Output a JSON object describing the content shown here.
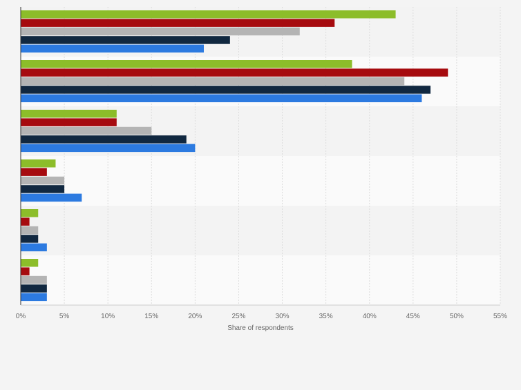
{
  "chart_data": {
    "type": "bar",
    "orientation": "horizontal",
    "xlabel": "Share of respondents",
    "ylabel": "",
    "xlim": [
      0,
      55
    ],
    "x_ticks": [
      {
        "value": 0,
        "label": "0%"
      },
      {
        "value": 5,
        "label": "5%"
      },
      {
        "value": 10,
        "label": "10%"
      },
      {
        "value": 15,
        "label": "15%"
      },
      {
        "value": 20,
        "label": "20%"
      },
      {
        "value": 25,
        "label": "25%"
      },
      {
        "value": 30,
        "label": "30%"
      },
      {
        "value": 35,
        "label": "35%"
      },
      {
        "value": 40,
        "label": "40%"
      },
      {
        "value": 45,
        "label": "45%"
      },
      {
        "value": 50,
        "label": "50%"
      },
      {
        "value": 55,
        "label": "55%"
      }
    ],
    "grid": true,
    "categories": [
      "",
      "",
      "",
      "",
      "",
      ""
    ],
    "series": [
      {
        "color": "#8cbd2a",
        "values": [
          43,
          38,
          11,
          4,
          2,
          2
        ]
      },
      {
        "color": "#a60b0f",
        "values": [
          36,
          49,
          11,
          3,
          1,
          1
        ]
      },
      {
        "color": "#b4b4b4",
        "values": [
          32,
          44,
          15,
          5,
          2,
          3
        ]
      },
      {
        "color": "#112840",
        "values": [
          24,
          47,
          19,
          5,
          2,
          3
        ]
      },
      {
        "color": "#2c7ae0",
        "values": [
          21,
          46,
          20,
          7,
          3,
          3
        ]
      }
    ],
    "band_colors": [
      "#f3f3f3",
      "#fafafa"
    ]
  }
}
